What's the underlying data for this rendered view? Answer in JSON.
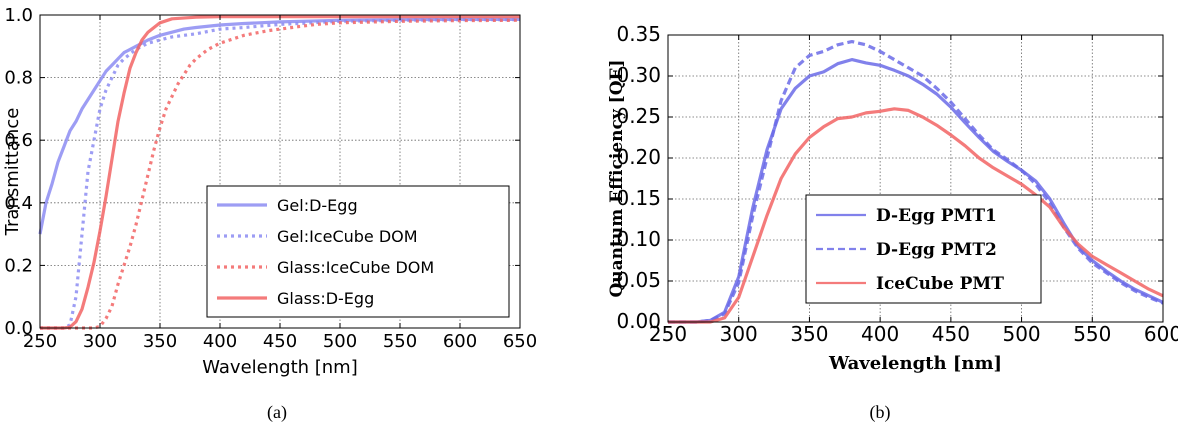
{
  "figure": {
    "captions": [
      "(a)",
      "(b)"
    ]
  },
  "chart_data": [
    {
      "type": "line",
      "title": "",
      "xlabel": "Wavelength  [nm]",
      "ylabel": "Transmittance",
      "xlim": [
        250,
        650
      ],
      "ylim": [
        0,
        1.0
      ],
      "xticks": [
        250,
        300,
        350,
        400,
        450,
        500,
        550,
        600,
        650
      ],
      "yticks": [
        0.0,
        0.2,
        0.4,
        0.6,
        0.8,
        1.0
      ],
      "ytick_labels": [
        "0.0",
        "0.2",
        "0.4",
        "0.6",
        "0.8",
        "1.0"
      ],
      "grid": true,
      "legend_position": "lower-right",
      "series": [
        {
          "name": "Gel:D-Egg",
          "color": "#8c8cf2",
          "style": "solid",
          "points": [
            [
              250,
              0.3
            ],
            [
              255,
              0.4
            ],
            [
              260,
              0.46
            ],
            [
              265,
              0.53
            ],
            [
              270,
              0.58
            ],
            [
              275,
              0.63
            ],
            [
              280,
              0.66
            ],
            [
              285,
              0.7
            ],
            [
              290,
              0.73
            ],
            [
              295,
              0.76
            ],
            [
              300,
              0.79
            ],
            [
              305,
              0.82
            ],
            [
              310,
              0.84
            ],
            [
              315,
              0.86
            ],
            [
              320,
              0.88
            ],
            [
              330,
              0.9
            ],
            [
              340,
              0.92
            ],
            [
              350,
              0.935
            ],
            [
              360,
              0.945
            ],
            [
              370,
              0.955
            ],
            [
              380,
              0.96
            ],
            [
              400,
              0.968
            ],
            [
              420,
              0.973
            ],
            [
              450,
              0.978
            ],
            [
              500,
              0.983
            ],
            [
              550,
              0.985
            ],
            [
              600,
              0.986
            ],
            [
              650,
              0.986
            ]
          ]
        },
        {
          "name": "Gel:IceCube DOM",
          "color": "#8c8cf2",
          "style": "dotted",
          "points": [
            [
              250,
              0.0
            ],
            [
              270,
              0.0
            ],
            [
              275,
              0.01
            ],
            [
              280,
              0.1
            ],
            [
              285,
              0.3
            ],
            [
              290,
              0.5
            ],
            [
              295,
              0.6
            ],
            [
              300,
              0.7
            ],
            [
              305,
              0.76
            ],
            [
              310,
              0.8
            ],
            [
              315,
              0.84
            ],
            [
              320,
              0.86
            ],
            [
              330,
              0.89
            ],
            [
              340,
              0.91
            ],
            [
              350,
              0.92
            ],
            [
              360,
              0.93
            ],
            [
              380,
              0.94
            ],
            [
              400,
              0.955
            ],
            [
              420,
              0.96
            ],
            [
              450,
              0.97
            ],
            [
              500,
              0.98
            ],
            [
              550,
              0.983
            ],
            [
              600,
              0.985
            ],
            [
              650,
              0.985
            ]
          ]
        },
        {
          "name": "Glass:IceCube DOM",
          "color": "#f26464",
          "style": "dotted",
          "points": [
            [
              250,
              0.0
            ],
            [
              295,
              0.0
            ],
            [
              300,
              0.005
            ],
            [
              305,
              0.03
            ],
            [
              310,
              0.07
            ],
            [
              315,
              0.14
            ],
            [
              320,
              0.2
            ],
            [
              325,
              0.26
            ],
            [
              330,
              0.33
            ],
            [
              335,
              0.41
            ],
            [
              340,
              0.49
            ],
            [
              345,
              0.57
            ],
            [
              350,
              0.64
            ],
            [
              355,
              0.7
            ],
            [
              360,
              0.74
            ],
            [
              365,
              0.78
            ],
            [
              370,
              0.81
            ],
            [
              375,
              0.84
            ],
            [
              380,
              0.86
            ],
            [
              390,
              0.89
            ],
            [
              400,
              0.91
            ],
            [
              420,
              0.935
            ],
            [
              440,
              0.95
            ],
            [
              460,
              0.96
            ],
            [
              480,
              0.97
            ],
            [
              500,
              0.975
            ],
            [
              550,
              0.98
            ],
            [
              600,
              0.982
            ],
            [
              650,
              0.983
            ]
          ]
        },
        {
          "name": "Glass:D-Egg",
          "color": "#f26464",
          "style": "solid",
          "points": [
            [
              250,
              0.0
            ],
            [
              270,
              0.0
            ],
            [
              275,
              0.003
            ],
            [
              280,
              0.02
            ],
            [
              285,
              0.06
            ],
            [
              290,
              0.13
            ],
            [
              295,
              0.21
            ],
            [
              300,
              0.31
            ],
            [
              305,
              0.42
            ],
            [
              310,
              0.54
            ],
            [
              315,
              0.66
            ],
            [
              320,
              0.75
            ],
            [
              325,
              0.83
            ],
            [
              330,
              0.88
            ],
            [
              335,
              0.92
            ],
            [
              340,
              0.945
            ],
            [
              345,
              0.96
            ],
            [
              350,
              0.975
            ],
            [
              360,
              0.988
            ],
            [
              380,
              0.993
            ],
            [
              400,
              0.995
            ],
            [
              450,
              0.995
            ],
            [
              500,
              0.995
            ],
            [
              550,
              0.995
            ],
            [
              600,
              0.995
            ],
            [
              650,
              0.995
            ]
          ]
        }
      ]
    },
    {
      "type": "line",
      "title": "",
      "xlabel": "Wavelength  [nm]",
      "ylabel": "Quantum Efficiency [QE]",
      "xlim": [
        250,
        600
      ],
      "ylim": [
        0,
        0.35
      ],
      "xticks": [
        250,
        300,
        350,
        400,
        450,
        500,
        550,
        600
      ],
      "yticks": [
        0.0,
        0.05,
        0.1,
        0.15,
        0.2,
        0.25,
        0.3,
        0.35
      ],
      "ytick_labels": [
        "0.00",
        "0.05",
        "0.10",
        "0.15",
        "0.20",
        "0.25",
        "0.30",
        "0.35"
      ],
      "grid": true,
      "legend_position": "lower-center",
      "series": [
        {
          "name": "D-Egg PMT1",
          "color": "#6b6be8",
          "style": "solid",
          "points": [
            [
              250,
              0.0
            ],
            [
              270,
              0.0
            ],
            [
              280,
              0.002
            ],
            [
              290,
              0.012
            ],
            [
              300,
              0.055
            ],
            [
              310,
              0.14
            ],
            [
              320,
              0.21
            ],
            [
              330,
              0.26
            ],
            [
              340,
              0.285
            ],
            [
              350,
              0.3
            ],
            [
              360,
              0.305
            ],
            [
              370,
              0.315
            ],
            [
              380,
              0.32
            ],
            [
              390,
              0.316
            ],
            [
              400,
              0.313
            ],
            [
              410,
              0.307
            ],
            [
              420,
              0.3
            ],
            [
              430,
              0.29
            ],
            [
              440,
              0.278
            ],
            [
              450,
              0.262
            ],
            [
              460,
              0.243
            ],
            [
              470,
              0.225
            ],
            [
              480,
              0.208
            ],
            [
              490,
              0.196
            ],
            [
              500,
              0.185
            ],
            [
              510,
              0.172
            ],
            [
              520,
              0.15
            ],
            [
              530,
              0.12
            ],
            [
              540,
              0.092
            ],
            [
              550,
              0.075
            ],
            [
              560,
              0.062
            ],
            [
              570,
              0.05
            ],
            [
              580,
              0.04
            ],
            [
              590,
              0.032
            ],
            [
              600,
              0.024
            ]
          ]
        },
        {
          "name": "D-Egg PMT2",
          "color": "#6b6be8",
          "style": "dashed",
          "points": [
            [
              250,
              0.0
            ],
            [
              270,
              0.0
            ],
            [
              280,
              0.002
            ],
            [
              290,
              0.01
            ],
            [
              300,
              0.048
            ],
            [
              310,
              0.13
            ],
            [
              320,
              0.2
            ],
            [
              330,
              0.27
            ],
            [
              340,
              0.31
            ],
            [
              350,
              0.325
            ],
            [
              360,
              0.33
            ],
            [
              370,
              0.338
            ],
            [
              380,
              0.342
            ],
            [
              390,
              0.338
            ],
            [
              400,
              0.33
            ],
            [
              410,
              0.32
            ],
            [
              420,
              0.31
            ],
            [
              430,
              0.3
            ],
            [
              440,
              0.285
            ],
            [
              450,
              0.268
            ],
            [
              460,
              0.248
            ],
            [
              470,
              0.228
            ],
            [
              480,
              0.21
            ],
            [
              490,
              0.198
            ],
            [
              500,
              0.185
            ],
            [
              510,
              0.168
            ],
            [
              520,
              0.145
            ],
            [
              530,
              0.115
            ],
            [
              540,
              0.09
            ],
            [
              550,
              0.072
            ],
            [
              560,
              0.06
            ],
            [
              570,
              0.048
            ],
            [
              580,
              0.038
            ],
            [
              590,
              0.03
            ],
            [
              600,
              0.023
            ]
          ]
        },
        {
          "name": "IceCube PMT",
          "color": "#f26464",
          "style": "solid",
          "points": [
            [
              250,
              0.0
            ],
            [
              270,
              0.0
            ],
            [
              280,
              0.0
            ],
            [
              290,
              0.005
            ],
            [
              300,
              0.03
            ],
            [
              310,
              0.08
            ],
            [
              320,
              0.13
            ],
            [
              330,
              0.175
            ],
            [
              340,
              0.205
            ],
            [
              350,
              0.225
            ],
            [
              360,
              0.238
            ],
            [
              370,
              0.248
            ],
            [
              380,
              0.25
            ],
            [
              390,
              0.255
            ],
            [
              400,
              0.257
            ],
            [
              410,
              0.26
            ],
            [
              420,
              0.258
            ],
            [
              430,
              0.25
            ],
            [
              440,
              0.24
            ],
            [
              450,
              0.228
            ],
            [
              460,
              0.215
            ],
            [
              470,
              0.2
            ],
            [
              480,
              0.188
            ],
            [
              490,
              0.178
            ],
            [
              500,
              0.168
            ],
            [
              510,
              0.155
            ],
            [
              520,
              0.14
            ],
            [
              530,
              0.115
            ],
            [
              540,
              0.095
            ],
            [
              550,
              0.08
            ],
            [
              560,
              0.07
            ],
            [
              570,
              0.06
            ],
            [
              580,
              0.05
            ],
            [
              590,
              0.04
            ],
            [
              600,
              0.032
            ]
          ]
        }
      ]
    }
  ]
}
